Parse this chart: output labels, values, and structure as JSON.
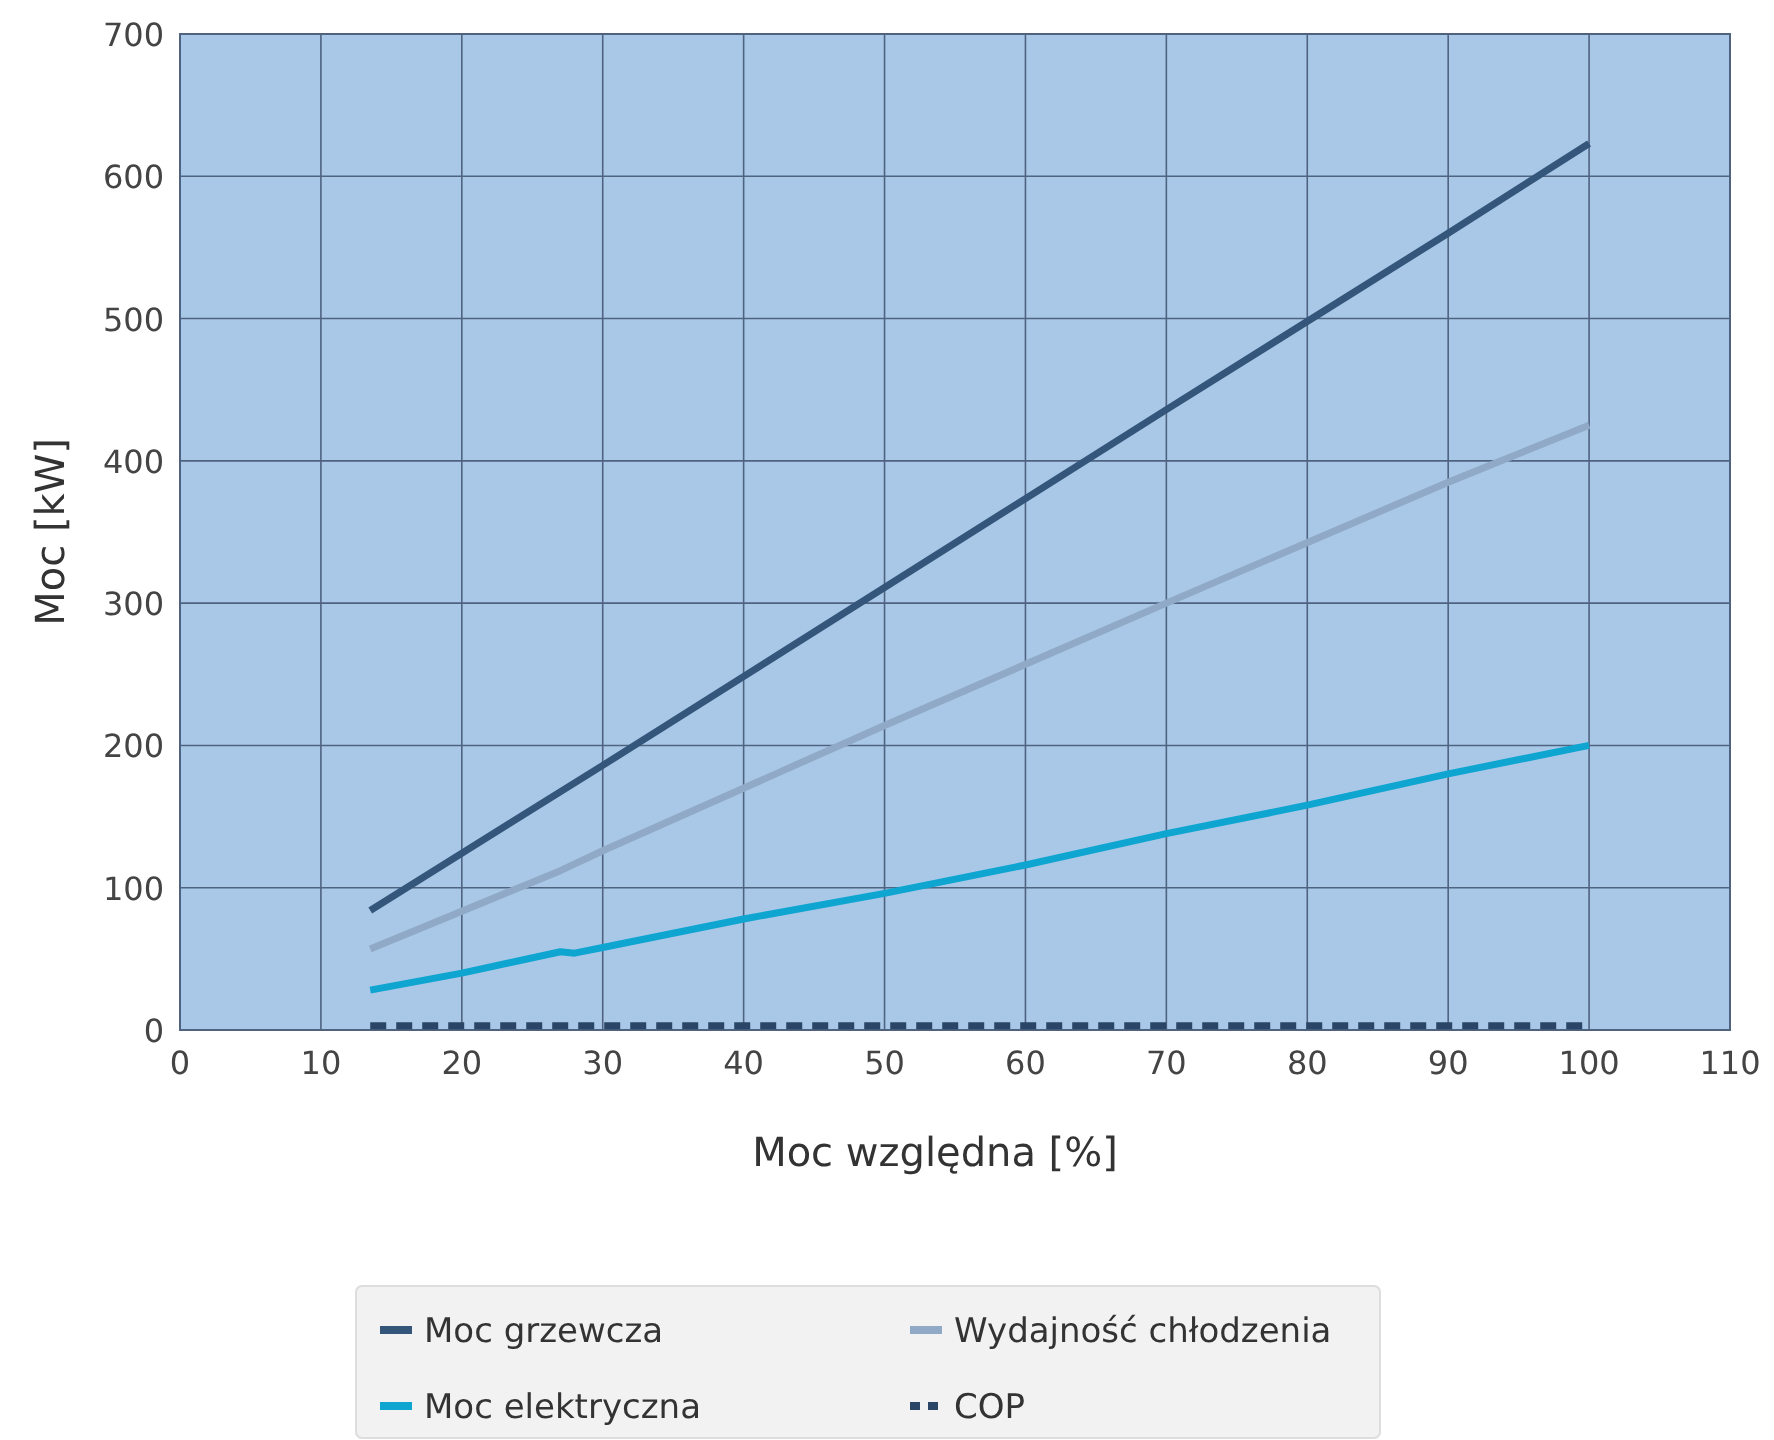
{
  "chart_data": {
    "type": "line",
    "xlabel": "Moc względna [%]",
    "ylabel": "Moc [kW]",
    "xlim": [
      0,
      110
    ],
    "xticks": [
      0,
      10,
      20,
      30,
      40,
      50,
      60,
      70,
      80,
      90,
      100,
      110
    ],
    "ylim": [
      0,
      700
    ],
    "yticks": [
      0,
      100,
      200,
      300,
      400,
      500,
      600,
      700
    ],
    "grid": true,
    "legend": "bottom",
    "marker": "none",
    "series": [
      {
        "name": "Moc grzewcza",
        "color": "#34567a",
        "x": [
          13.5,
          30,
          50,
          70,
          90,
          100
        ],
        "values": [
          84,
          186,
          311,
          436,
          560,
          623
        ]
      },
      {
        "name": "Wydajność chłodzenia",
        "color": "#8fa9c6",
        "x": [
          13.5,
          27,
          30,
          50,
          70,
          90,
          100
        ],
        "values": [
          57,
          112,
          126,
          214,
          300,
          385,
          425
        ]
      },
      {
        "name": "Moc elektryczna",
        "color": "#0ea5d0",
        "x": [
          13.5,
          20,
          27,
          28,
          30,
          40,
          50,
          60,
          70,
          80,
          90,
          100
        ],
        "values": [
          28,
          40,
          55,
          54,
          58,
          78,
          96,
          116,
          138,
          158,
          180,
          200
        ]
      },
      {
        "name": "COP",
        "color": "#2a4565",
        "line_style": "dashed",
        "x": [
          13.5,
          100
        ],
        "values": [
          3,
          3
        ]
      }
    ]
  }
}
